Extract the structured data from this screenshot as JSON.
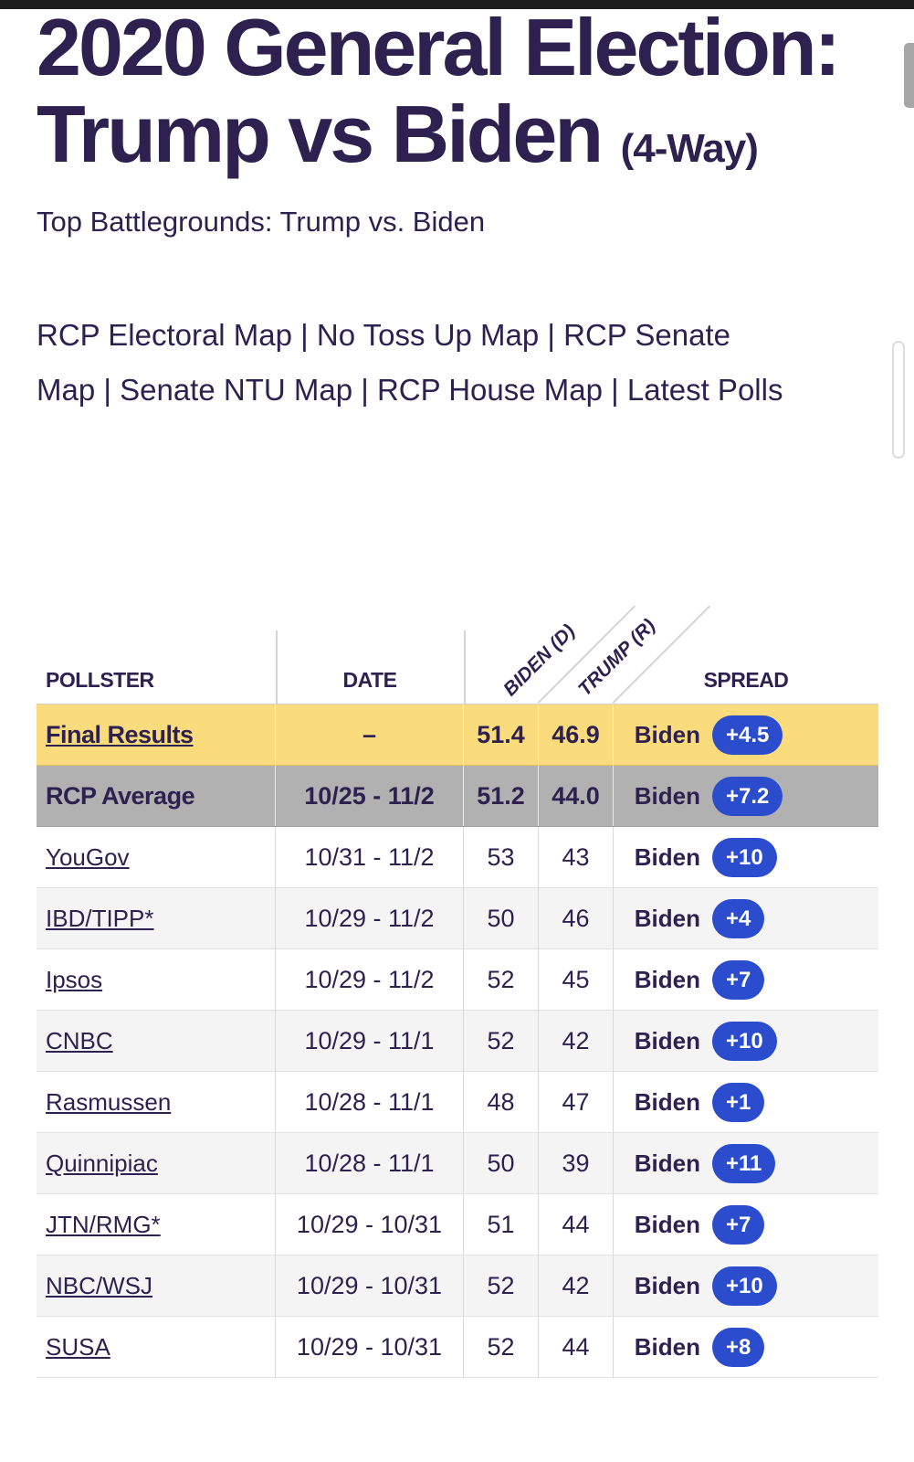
{
  "page": {
    "title_main": "2020 General Election: Trump vs Biden",
    "title_suffix": "(4-Way)",
    "subtitle": "Top Battlegrounds: Trump vs. Biden"
  },
  "links": {
    "items": [
      "RCP Electoral Map",
      "No Toss Up Map",
      "RCP Senate Map",
      "Senate NTU Map",
      "RCP House Map",
      "Latest Polls"
    ],
    "display_line1": "RCP Electoral Map | No Toss Up Map | RCP Senate",
    "display_line2": "Map | Senate NTU Map | RCP House Map | Latest Polls"
  },
  "colors": {
    "text_purple": "#2e2150",
    "final_row_yellow": "#fbdc7d",
    "average_row_gray": "#b1b1b1",
    "alt_row_gray": "#f4f4f4",
    "spread_pill_blue": "#2b4ccd",
    "top_bar_black": "#1d1d1d"
  },
  "table": {
    "columns": [
      "POLLSTER",
      "DATE",
      "BIDEN (D)",
      "TRUMP (R)",
      "SPREAD"
    ],
    "rows": [
      {
        "type": "final",
        "pollster": "Final Results",
        "date": "–",
        "biden": "51.4",
        "trump": "46.9",
        "spread_leader": "Biden",
        "spread_value": "+4.5"
      },
      {
        "type": "average",
        "pollster": "RCP Average",
        "date": "10/25 - 11/2",
        "biden": "51.2",
        "trump": "44.0",
        "spread_leader": "Biden",
        "spread_value": "+7.2"
      },
      {
        "type": "poll",
        "pollster": "YouGov",
        "date": "10/31 - 11/2",
        "biden": "53",
        "trump": "43",
        "spread_leader": "Biden",
        "spread_value": "+10"
      },
      {
        "type": "poll",
        "pollster": "IBD/TIPP*",
        "date": "10/29 - 11/2",
        "biden": "50",
        "trump": "46",
        "spread_leader": "Biden",
        "spread_value": "+4"
      },
      {
        "type": "poll",
        "pollster": "Ipsos",
        "date": "10/29 - 11/2",
        "biden": "52",
        "trump": "45",
        "spread_leader": "Biden",
        "spread_value": "+7"
      },
      {
        "type": "poll",
        "pollster": "CNBC",
        "date": "10/29 - 11/1",
        "biden": "52",
        "trump": "42",
        "spread_leader": "Biden",
        "spread_value": "+10"
      },
      {
        "type": "poll",
        "pollster": "Rasmussen",
        "date": "10/28 - 11/1",
        "biden": "48",
        "trump": "47",
        "spread_leader": "Biden",
        "spread_value": "+1"
      },
      {
        "type": "poll",
        "pollster": "Quinnipiac",
        "date": "10/28 - 11/1",
        "biden": "50",
        "trump": "39",
        "spread_leader": "Biden",
        "spread_value": "+11"
      },
      {
        "type": "poll",
        "pollster": "JTN/RMG*",
        "date": "10/29 - 10/31",
        "biden": "51",
        "trump": "44",
        "spread_leader": "Biden",
        "spread_value": "+7"
      },
      {
        "type": "poll",
        "pollster": "NBC/WSJ",
        "date": "10/29 - 10/31",
        "biden": "52",
        "trump": "42",
        "spread_leader": "Biden",
        "spread_value": "+10"
      },
      {
        "type": "poll",
        "pollster": "SUSA",
        "date": "10/29 - 10/31",
        "biden": "52",
        "trump": "44",
        "spread_leader": "Biden",
        "spread_value": "+8"
      }
    ]
  }
}
